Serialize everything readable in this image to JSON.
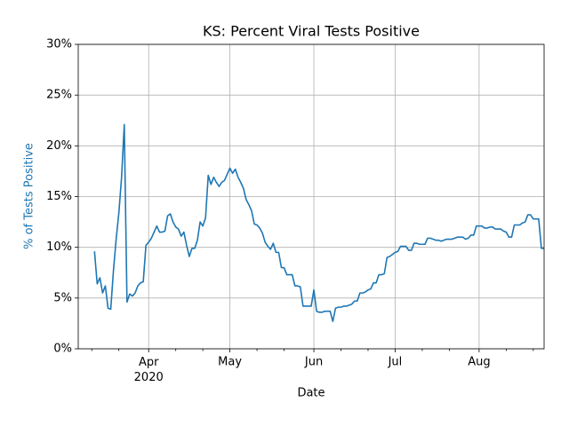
{
  "chart_data": {
    "type": "line",
    "title": "KS: Percent Viral Tests Positive",
    "x_label": "Date",
    "y_label": "% of Tests Positive",
    "x": [
      "2020-03-12",
      "2020-03-13",
      "2020-03-14",
      "2020-03-15",
      "2020-03-16",
      "2020-03-17",
      "2020-03-18",
      "2020-03-19",
      "2020-03-20",
      "2020-03-21",
      "2020-03-22",
      "2020-03-23",
      "2020-03-24",
      "2020-03-25",
      "2020-03-26",
      "2020-03-27",
      "2020-03-28",
      "2020-03-29",
      "2020-03-30",
      "2020-03-31",
      "2020-04-01",
      "2020-04-02",
      "2020-04-03",
      "2020-04-04",
      "2020-04-05",
      "2020-04-06",
      "2020-04-07",
      "2020-04-08",
      "2020-04-09",
      "2020-04-10",
      "2020-04-11",
      "2020-04-12",
      "2020-04-13",
      "2020-04-14",
      "2020-04-15",
      "2020-04-16",
      "2020-04-17",
      "2020-04-18",
      "2020-04-19",
      "2020-04-20",
      "2020-04-21",
      "2020-04-22",
      "2020-04-23",
      "2020-04-24",
      "2020-04-25",
      "2020-04-26",
      "2020-04-27",
      "2020-04-28",
      "2020-04-29",
      "2020-04-30",
      "2020-05-01",
      "2020-05-02",
      "2020-05-03",
      "2020-05-04",
      "2020-05-05",
      "2020-05-06",
      "2020-05-07",
      "2020-05-08",
      "2020-05-09",
      "2020-05-10",
      "2020-05-11",
      "2020-05-12",
      "2020-05-13",
      "2020-05-14",
      "2020-05-15",
      "2020-05-16",
      "2020-05-17",
      "2020-05-18",
      "2020-05-19",
      "2020-05-20",
      "2020-05-21",
      "2020-05-22",
      "2020-05-23",
      "2020-05-24",
      "2020-05-25",
      "2020-05-26",
      "2020-05-27",
      "2020-05-28",
      "2020-05-29",
      "2020-05-30",
      "2020-05-31",
      "2020-06-01",
      "2020-06-02",
      "2020-06-03",
      "2020-06-04",
      "2020-06-05",
      "2020-06-06",
      "2020-06-07",
      "2020-06-08",
      "2020-06-09",
      "2020-06-10",
      "2020-06-11",
      "2020-06-12",
      "2020-06-13",
      "2020-06-14",
      "2020-06-15",
      "2020-06-16",
      "2020-06-17",
      "2020-06-18",
      "2020-06-19",
      "2020-06-20",
      "2020-06-21",
      "2020-06-22",
      "2020-06-23",
      "2020-06-24",
      "2020-06-25",
      "2020-06-26",
      "2020-06-27",
      "2020-06-28",
      "2020-06-29",
      "2020-06-30",
      "2020-07-01",
      "2020-07-02",
      "2020-07-03",
      "2020-07-04",
      "2020-07-05",
      "2020-07-06",
      "2020-07-07",
      "2020-07-08",
      "2020-07-09",
      "2020-07-10",
      "2020-07-11",
      "2020-07-12",
      "2020-07-13",
      "2020-07-14",
      "2020-07-15",
      "2020-07-16",
      "2020-07-17",
      "2020-07-18",
      "2020-07-19",
      "2020-07-20",
      "2020-07-21",
      "2020-07-22",
      "2020-07-23",
      "2020-07-24",
      "2020-07-25",
      "2020-07-26",
      "2020-07-27",
      "2020-07-28",
      "2020-07-29",
      "2020-07-30",
      "2020-07-31",
      "2020-08-01",
      "2020-08-02",
      "2020-08-03",
      "2020-08-04",
      "2020-08-05",
      "2020-08-06",
      "2020-08-07",
      "2020-08-08",
      "2020-08-09",
      "2020-08-10",
      "2020-08-11",
      "2020-08-12",
      "2020-08-13",
      "2020-08-14",
      "2020-08-15",
      "2020-08-16",
      "2020-08-17",
      "2020-08-18",
      "2020-08-19",
      "2020-08-20",
      "2020-08-21",
      "2020-08-22",
      "2020-08-23",
      "2020-08-24",
      "2020-08-25"
    ],
    "series": [
      {
        "color": "#1f77b4",
        "values": [
          9.6,
          6.4,
          7.0,
          5.5,
          6.2,
          4.0,
          3.9,
          7.7,
          10.8,
          13.4,
          16.9,
          22.1,
          4.6,
          5.4,
          5.2,
          5.5,
          6.2,
          6.5,
          6.6,
          10.2,
          10.5,
          10.9,
          11.5,
          12.1,
          11.5,
          11.5,
          11.6,
          13.1,
          13.3,
          12.5,
          12.0,
          11.8,
          11.1,
          11.5,
          10.2,
          9.1,
          9.9,
          9.9,
          10.7,
          12.5,
          12.1,
          12.9,
          17.1,
          16.2,
          16.9,
          16.4,
          16.0,
          16.4,
          16.6,
          17.2,
          17.8,
          17.3,
          17.7,
          16.9,
          16.4,
          15.8,
          14.7,
          14.2,
          13.6,
          12.3,
          12.2,
          11.9,
          11.4,
          10.5,
          10.1,
          9.8,
          10.4,
          9.5,
          9.5,
          8.0,
          8.0,
          7.3,
          7.3,
          7.3,
          6.2,
          6.2,
          6.1,
          4.2,
          4.2,
          4.2,
          4.2,
          5.8,
          3.7,
          3.6,
          3.6,
          3.7,
          3.7,
          3.7,
          2.7,
          4.0,
          4.1,
          4.1,
          4.2,
          4.2,
          4.3,
          4.4,
          4.7,
          4.7,
          5.5,
          5.5,
          5.6,
          5.8,
          5.9,
          6.5,
          6.5,
          7.3,
          7.3,
          7.4,
          9.0,
          9.1,
          9.3,
          9.5,
          9.6,
          10.1,
          10.1,
          10.1,
          9.7,
          9.7,
          10.4,
          10.4,
          10.3,
          10.3,
          10.3,
          10.9,
          10.9,
          10.8,
          10.7,
          10.7,
          10.6,
          10.7,
          10.8,
          10.8,
          10.8,
          10.9,
          11.0,
          11.0,
          11.0,
          10.8,
          10.9,
          11.2,
          11.2,
          12.1,
          12.1,
          12.1,
          11.9,
          11.9,
          12.0,
          12.0,
          11.8,
          11.8,
          11.8,
          11.6,
          11.5,
          11.0,
          11.0,
          12.2,
          12.2,
          12.2,
          12.4,
          12.5,
          13.2,
          13.2,
          12.8,
          12.8,
          12.8,
          9.9,
          9.9
        ]
      }
    ],
    "xlim": [
      "2020-03-06",
      "2020-08-25"
    ],
    "xticks": [
      {
        "value": "2020-04-01",
        "label": "Apr\n2020"
      },
      {
        "value": "2020-05-01",
        "label": "May"
      },
      {
        "value": "2020-06-01",
        "label": "Jun"
      },
      {
        "value": "2020-07-01",
        "label": "Jul"
      },
      {
        "value": "2020-08-01",
        "label": "Aug"
      }
    ],
    "xminorticks": [
      "2020-03-11",
      "2020-03-21",
      "2020-04-11",
      "2020-04-21",
      "2020-05-11",
      "2020-05-21",
      "2020-06-11",
      "2020-06-21",
      "2020-07-11",
      "2020-07-21",
      "2020-08-11",
      "2020-08-21"
    ],
    "ylim": [
      0,
      30
    ],
    "yticks": [
      {
        "value": 0,
        "label": "0%"
      },
      {
        "value": 5,
        "label": "5%"
      },
      {
        "value": 10,
        "label": "10%"
      },
      {
        "value": 15,
        "label": "15%"
      },
      {
        "value": 20,
        "label": "20%"
      },
      {
        "value": 25,
        "label": "25%"
      },
      {
        "value": 30,
        "label": "30%"
      }
    ],
    "grid": true
  }
}
